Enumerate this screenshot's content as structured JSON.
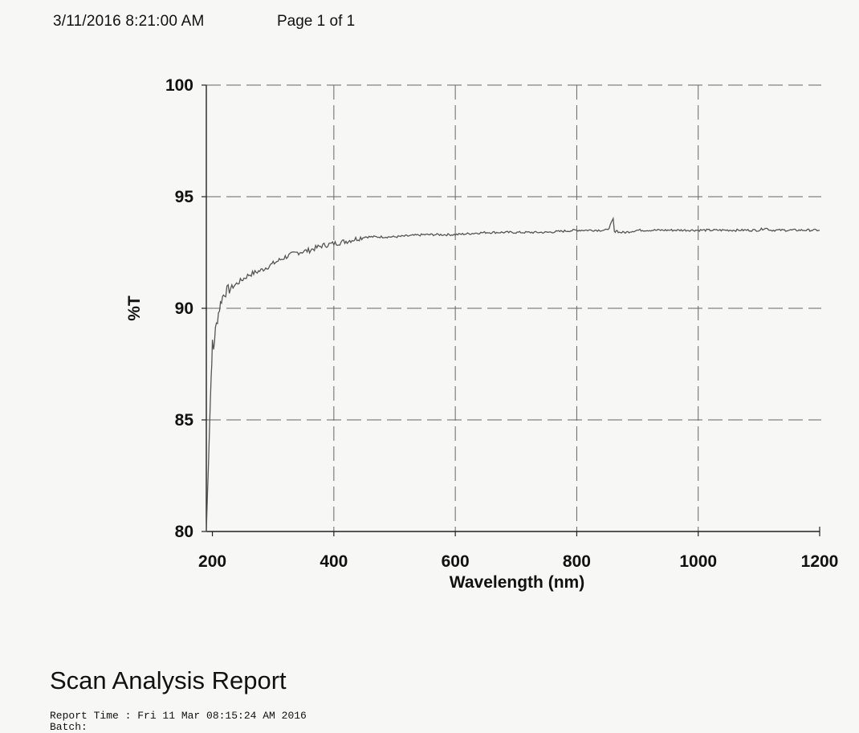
{
  "header": {
    "datetime": "3/11/2016 8:21:00 AM",
    "page": "Page 1 of 1"
  },
  "report": {
    "title": "Scan Analysis Report",
    "report_time": "Report Time : Fri 11 Mar 08:15:24 AM 2016",
    "batch": "Batch:"
  },
  "chart_data": {
    "type": "line",
    "title": "",
    "xlabel": "Wavelength (nm)",
    "ylabel": "%T",
    "xlim": [
      190,
      1200
    ],
    "ylim": [
      80,
      100
    ],
    "xticks": [
      200,
      400,
      600,
      800,
      1000,
      1200
    ],
    "yticks": [
      80,
      85,
      90,
      95,
      100
    ],
    "grid": true,
    "line_color": "#555555",
    "series": [
      {
        "name": "",
        "x": [
          190,
          195,
          198,
          200,
          202,
          205,
          210,
          215,
          220,
          230,
          240,
          250,
          260,
          280,
          300,
          320,
          340,
          360,
          380,
          400,
          420,
          450,
          500,
          550,
          600,
          650,
          700,
          750,
          800,
          830,
          850,
          855,
          860,
          862,
          865,
          870,
          880,
          900,
          950,
          1000,
          1050,
          1100,
          1110,
          1120,
          1150,
          1200
        ],
        "y": [
          80.0,
          84.5,
          87.0,
          88.4,
          88.2,
          89.0,
          89.8,
          90.4,
          90.7,
          90.9,
          91.1,
          91.3,
          91.5,
          91.7,
          92.0,
          92.3,
          92.5,
          92.6,
          92.8,
          92.9,
          93.0,
          93.2,
          93.2,
          93.3,
          93.3,
          93.4,
          93.4,
          93.4,
          93.5,
          93.5,
          93.5,
          93.7,
          94.0,
          93.4,
          93.5,
          93.4,
          93.4,
          93.5,
          93.5,
          93.5,
          93.5,
          93.5,
          93.6,
          93.5,
          93.5,
          93.5
        ]
      }
    ]
  }
}
